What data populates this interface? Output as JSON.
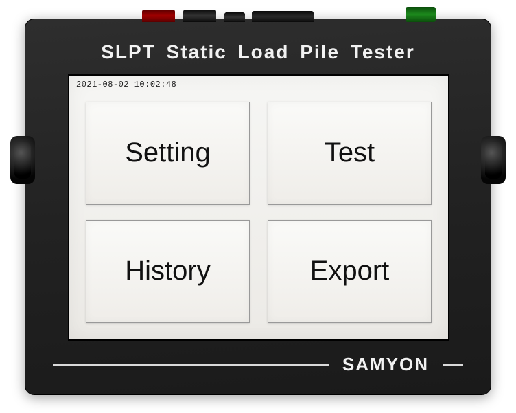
{
  "device": {
    "title": "SLPT Static  Load  Pile  Tester",
    "brand": "SAMYON",
    "colors": {
      "body": "#222222",
      "title_text": "#f2f2f2",
      "brand_text": "#f2f2f2",
      "screen_bg": "#f0efeb",
      "tile_bg": "#f6f5f1",
      "tile_border": "#999999",
      "tile_text": "#111111",
      "divider": "#d9d9d9"
    }
  },
  "screen": {
    "timestamp": "2021-08-02 10:02:48",
    "tiles": {
      "setting": "Setting",
      "test": "Test",
      "history": "History",
      "export": "Export"
    }
  },
  "connectors": {
    "red": "#a00000",
    "black": "#111111",
    "green": "#1d8a1d"
  }
}
